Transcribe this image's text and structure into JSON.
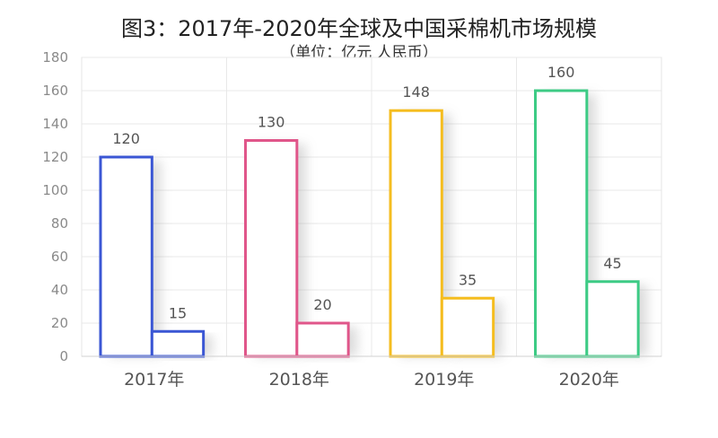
{
  "chart_data": {
    "type": "bar",
    "title": "图3：2017年-2020年全球及中国采棉机市场规模",
    "subtitle": "（单位：亿元  人民币）",
    "categories": [
      "2017年",
      "2018年",
      "2019年",
      "2020年"
    ],
    "series": [
      {
        "values": [
          120,
          130,
          148,
          160
        ]
      },
      {
        "values": [
          15,
          20,
          35,
          45
        ]
      }
    ],
    "category_colors": [
      "#3a56d4",
      "#e0568a",
      "#f5bd1f",
      "#3dcb85"
    ],
    "ylim": [
      0,
      180
    ],
    "yticks": [
      0,
      20,
      40,
      60,
      80,
      100,
      120,
      140,
      160,
      180
    ],
    "grid": true,
    "bar_fill": "none",
    "legend": "none"
  }
}
